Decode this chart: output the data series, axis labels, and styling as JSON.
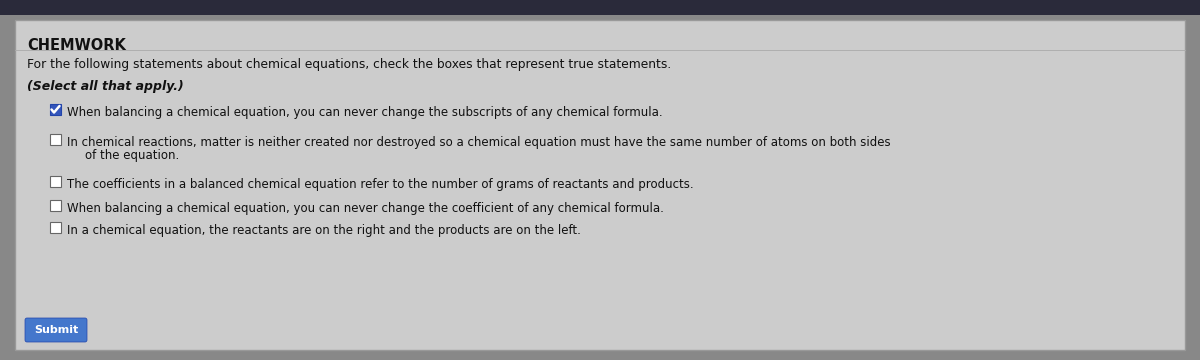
{
  "title": "CHEMWORK",
  "instruction": "For the following statements about chemical equations, check the boxes that represent true statements.",
  "select_label": "(Select all that apply.)",
  "items": [
    {
      "checked": true,
      "text": "When balancing a chemical equation, you can never change the subscripts of any chemical formula."
    },
    {
      "checked": false,
      "text_line1": "In chemical reactions, matter is neither created nor destroyed so a chemical equation must have the same number of atoms on both sides",
      "text_line2": "of the equation."
    },
    {
      "checked": false,
      "text": "The coefficients in a balanced chemical equation refer to the number of grams of reactants and products."
    },
    {
      "checked": false,
      "text": "When balancing a chemical equation, you can never change the coefficient of any chemical formula."
    },
    {
      "checked": false,
      "text": "In a chemical equation, the reactants are on the right and the products are on the left."
    }
  ],
  "submit_label": "Submit",
  "outer_bg": "#888888",
  "top_bar_color": "#2a2a3a",
  "panel_bg": "#cccccc",
  "panel_border": "#999999",
  "title_color": "#111111",
  "text_color": "#111111",
  "checked_box_fill": "#3355bb",
  "checked_box_border": "#2244aa",
  "check_color": "#ffffff",
  "unchecked_box_fill": "#ffffff",
  "unchecked_box_border": "#666666",
  "submit_bg": "#4477cc",
  "submit_text": "#ffffff",
  "divider_color": "#aaaaaa",
  "font_size_title": 10.5,
  "font_size_instruction": 8.8,
  "font_size_select": 9.0,
  "font_size_item": 8.5,
  "font_size_submit": 8.0
}
